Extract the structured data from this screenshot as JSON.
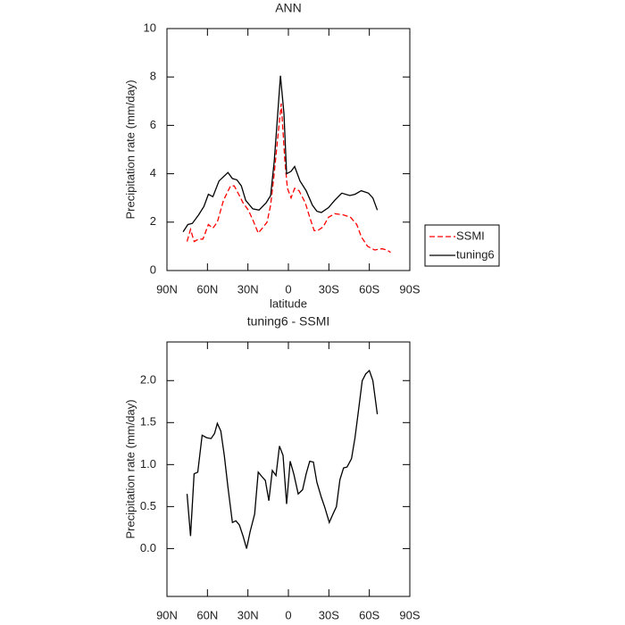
{
  "chart_data": [
    {
      "type": "line",
      "title": "ANN",
      "xlabel": "latitude",
      "ylabel": "Precipitation rate  (mm/day)",
      "xlim": [
        90,
        -90
      ],
      "xticks": [
        {
          "value": 90,
          "label": "90N"
        },
        {
          "value": 60,
          "label": "60N"
        },
        {
          "value": 30,
          "label": "30N"
        },
        0,
        {
          "value": -30,
          "label": "30S"
        },
        {
          "value": -60,
          "label": "60S"
        },
        {
          "value": -90,
          "label": "90S"
        }
      ],
      "ylim": [
        0,
        10
      ],
      "yticks": [
        0,
        2,
        4,
        6,
        8,
        10
      ],
      "legend": "right",
      "series": [
        {
          "name": "SSMI",
          "color": "#ff0000",
          "line_style": "dashed",
          "x": [
            75.1,
            72.5,
            69.9,
            66.6,
            63.3,
            59.3,
            56,
            52.7,
            48.1,
            42.9,
            40.2,
            36.3,
            33.6,
            29.7,
            26.4,
            22.4,
            18.5,
            15.8,
            13.2,
            10.5,
            7.9,
            5.3,
            2.6,
            0.7,
            -2,
            -4.6,
            -7.9,
            -12.5,
            -15.8,
            -19.1,
            -21.8,
            -25.7,
            -29.7,
            -34.3,
            -40.9,
            -46.1,
            -50.7,
            -54,
            -58.7,
            -63.9,
            -69.2,
            -73.1,
            -75.8
          ],
          "values": [
            1.2,
            1.7,
            1.2,
            1.3,
            1.3,
            1.9,
            1.75,
            2.0,
            2.9,
            3.5,
            3.5,
            3.1,
            2.8,
            2.5,
            2.1,
            1.55,
            1.8,
            2.0,
            2.7,
            4.0,
            5.5,
            6.9,
            4.5,
            3.4,
            3.0,
            3.4,
            3.3,
            2.8,
            2.2,
            1.65,
            1.65,
            1.8,
            2.2,
            2.35,
            2.3,
            2.2,
            1.9,
            1.4,
            1.0,
            0.85,
            0.9,
            0.85,
            0.75
          ]
        },
        {
          "name": "tuning6",
          "color": "#000000",
          "line_style": "solid",
          "x": [
            78,
            74.5,
            71.2,
            66.6,
            62.6,
            59.3,
            56,
            51.4,
            44.8,
            41.5,
            38.2,
            34.9,
            31.6,
            26.4,
            21.8,
            16.5,
            13.2,
            10.5,
            7.9,
            5.9,
            3.3,
            1.3,
            -2,
            -4.6,
            -8.6,
            -13.2,
            -17.8,
            -21.1,
            -24.4,
            -29.7,
            -34.3,
            -39.6,
            -45.5,
            -49.4,
            -54,
            -59.3,
            -62.6,
            -65.9
          ],
          "values": [
            1.6,
            1.9,
            1.95,
            2.3,
            2.65,
            3.15,
            3.05,
            3.7,
            4.05,
            3.8,
            3.75,
            3.5,
            2.9,
            2.55,
            2.5,
            2.8,
            3.1,
            4.5,
            6.5,
            8.05,
            6.5,
            4.0,
            4.1,
            4.3,
            3.7,
            3.3,
            2.7,
            2.45,
            2.4,
            2.6,
            2.9,
            3.2,
            3.1,
            3.15,
            3.3,
            3.2,
            3.0,
            2.5
          ]
        }
      ]
    },
    {
      "type": "line",
      "title": "tuning6 - SSMI",
      "xlabel": "latitude",
      "ylabel": "Precipitation rate  (mm/day)",
      "xlim": [
        90,
        -90
      ],
      "xticks": [
        {
          "value": 90,
          "label": "90N"
        },
        {
          "value": 60,
          "label": "60N"
        },
        {
          "value": 30,
          "label": "30N"
        },
        0,
        {
          "value": -30,
          "label": "30S"
        },
        {
          "value": -60,
          "label": "60S"
        },
        {
          "value": -90,
          "label": "90S"
        }
      ],
      "ylim": [
        -0.57,
        2.46
      ],
      "yticks": [
        {
          "value": 0,
          "label": "0.0"
        },
        {
          "value": 0.5,
          "label": "0.5"
        },
        {
          "value": 1,
          "label": "1.0"
        },
        {
          "value": 1.5,
          "label": "1.5"
        },
        {
          "value": 2,
          "label": "2.0"
        }
      ],
      "series": [
        {
          "color": "#000000",
          "line_style": "solid",
          "x": [
            75.1,
            72.5,
            69.9,
            67.2,
            63.9,
            60.6,
            57.3,
            54.7,
            52.7,
            50.1,
            47.5,
            44.8,
            41.5,
            38.9,
            36.3,
            33.6,
            31,
            28.4,
            25,
            22.4,
            19.8,
            17.1,
            14.5,
            11.9,
            9.2,
            6.6,
            4,
            1.3,
            -1.3,
            -4,
            -7.3,
            -10.5,
            -13.2,
            -15.8,
            -18.5,
            -21.1,
            -24.4,
            -27,
            -30.3,
            -33,
            -35.6,
            -38.2,
            -40.9,
            -43.5,
            -46.8,
            -49.4,
            -52.1,
            -54.7,
            -57.4,
            -60,
            -62.6,
            -65.9
          ],
          "values": [
            0.65,
            0.15,
            0.89,
            0.91,
            1.35,
            1.32,
            1.31,
            1.37,
            1.49,
            1.4,
            1.11,
            0.73,
            0.31,
            0.33,
            0.28,
            0.15,
            0.0,
            0.2,
            0.41,
            0.91,
            0.86,
            0.81,
            0.57,
            0.93,
            0.87,
            1.22,
            1.11,
            0.53,
            1.04,
            0.89,
            0.65,
            0.7,
            0.89,
            1.04,
            1.03,
            0.79,
            0.61,
            0.49,
            0.31,
            0.41,
            0.5,
            0.82,
            0.96,
            0.97,
            1.07,
            1.32,
            1.66,
            2.0,
            2.08,
            2.12,
            2.0,
            1.6
          ]
        }
      ]
    }
  ]
}
